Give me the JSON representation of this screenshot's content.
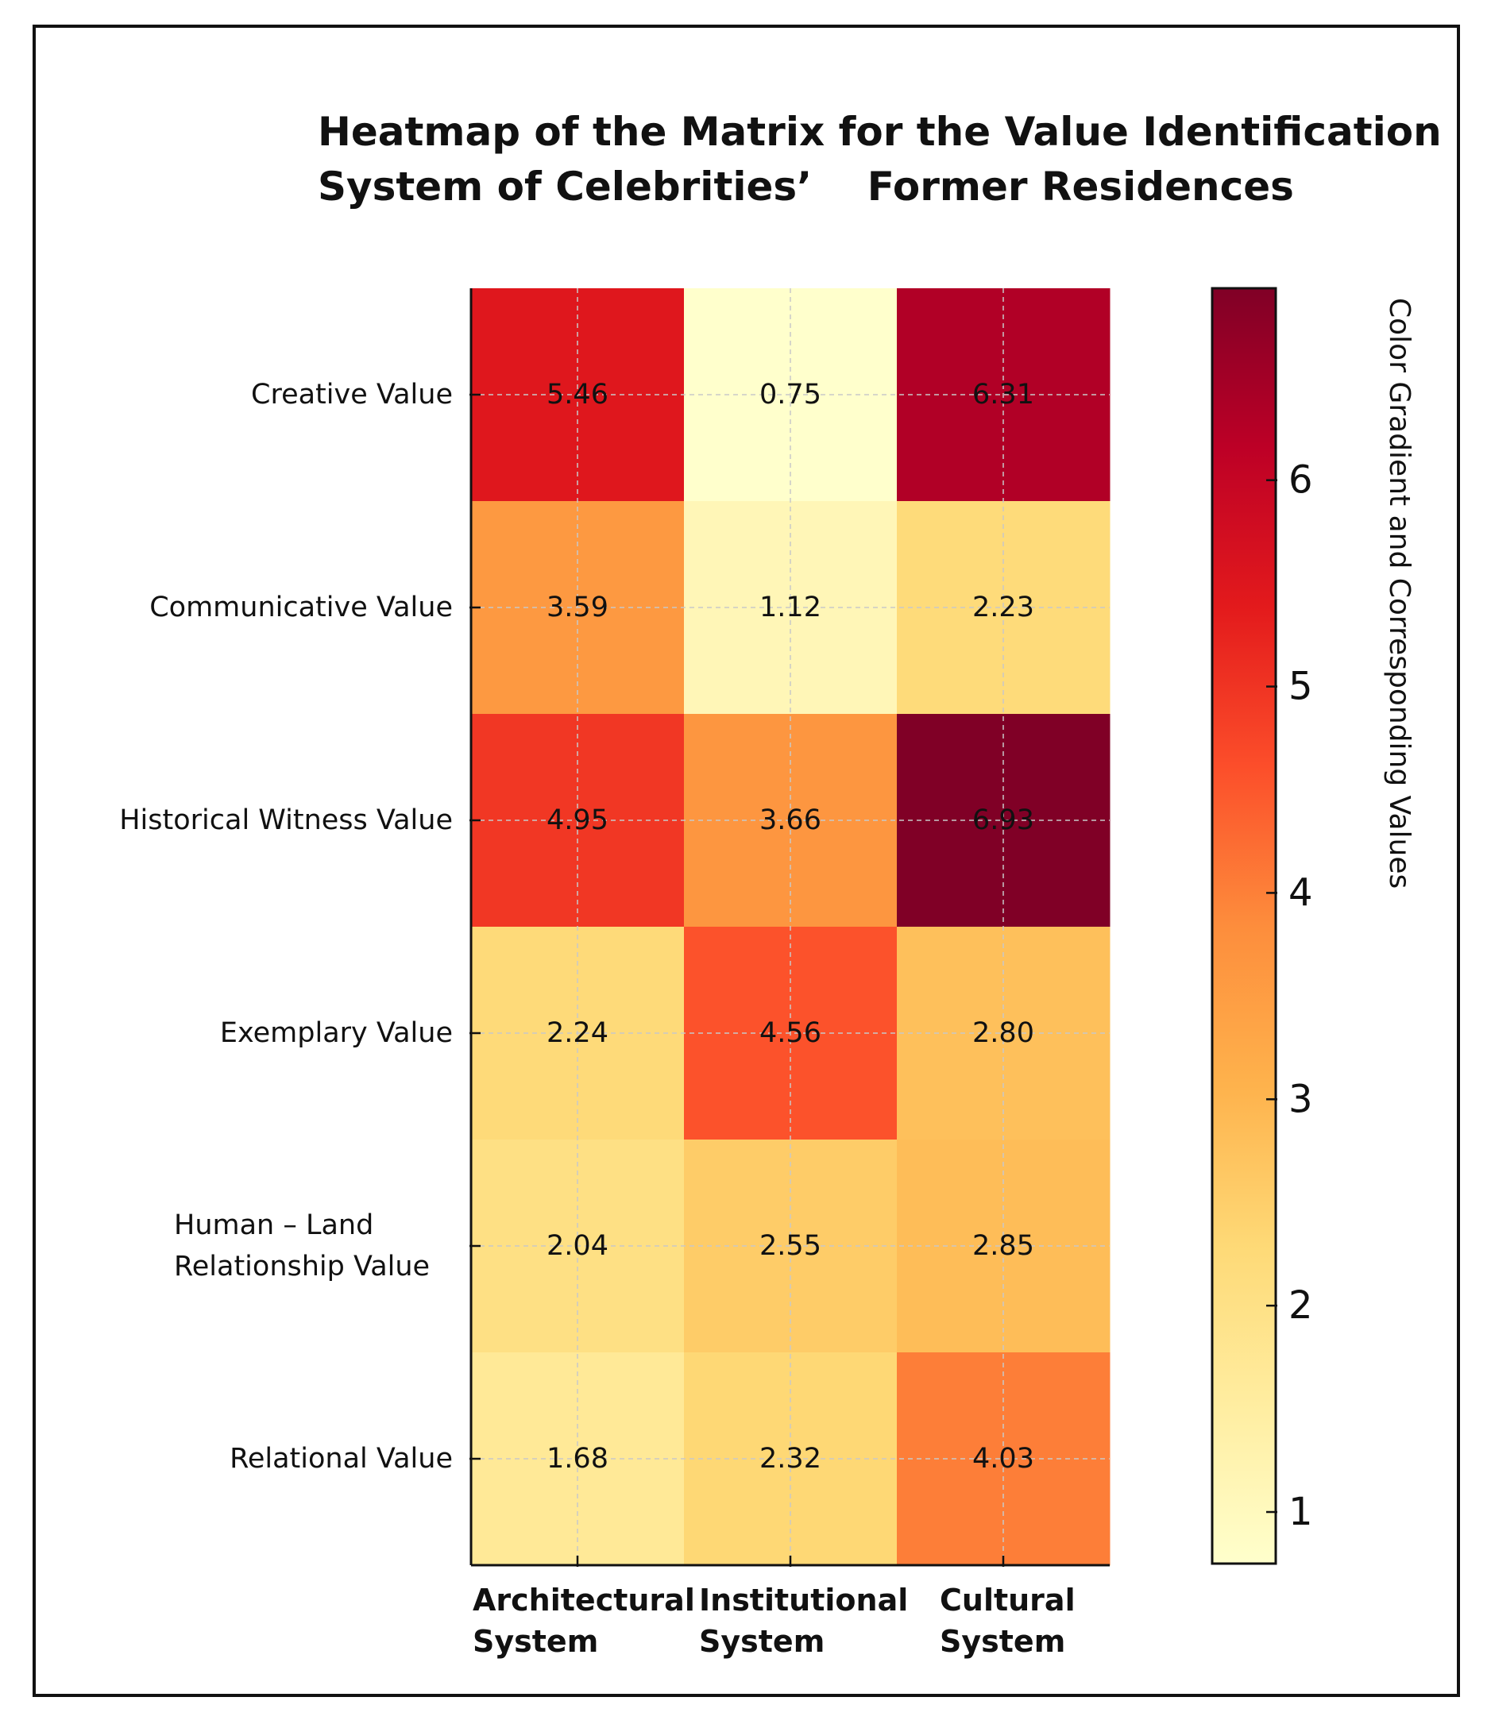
{
  "chart_data": {
    "type": "heatmap",
    "title": [
      "Heatmap of the Matrix for the Value Identification",
      "System of Celebrities’    Former Residences"
    ],
    "rows": [
      [
        "Creative Value"
      ],
      [
        "Communicative Value"
      ],
      [
        "Historical Witness Value"
      ],
      [
        "Exemplary Value"
      ],
      [
        "Human – Land",
        "Relationship Value"
      ],
      [
        "Relational Value"
      ]
    ],
    "columns": [
      [
        "Architectural",
        "System"
      ],
      [
        "Institutional",
        "System"
      ],
      [
        "Cultural",
        "System"
      ]
    ],
    "values": [
      [
        5.46,
        0.75,
        6.31
      ],
      [
        3.59,
        1.12,
        2.23
      ],
      [
        4.95,
        3.66,
        6.93
      ],
      [
        2.24,
        4.56,
        2.8
      ],
      [
        2.04,
        2.55,
        2.85
      ],
      [
        1.68,
        2.32,
        4.03
      ]
    ],
    "value_labels": [
      [
        "5.46",
        "0.75",
        "6.31"
      ],
      [
        "3.59",
        "1.12",
        "2.23"
      ],
      [
        "4.95",
        "3.66",
        "6.93"
      ],
      [
        "2.24",
        "4.56",
        "2.80"
      ],
      [
        "2.04",
        "2.55",
        "2.85"
      ],
      [
        "1.68",
        "2.32",
        "4.03"
      ]
    ],
    "colormap": "YlOrRd",
    "vmin": 0.75,
    "vmax": 6.93,
    "colorbar": {
      "label": "Color Gradient and Corresponding Values",
      "ticks": [
        "1",
        "2",
        "3",
        "4",
        "5",
        "6"
      ],
      "tick_values": [
        1,
        2,
        3,
        4,
        5,
        6
      ]
    },
    "grid": true
  },
  "colors": {
    "stops": [
      "#ffffcc",
      "#ffeda0",
      "#fed976",
      "#feb24c",
      "#fd8d3c",
      "#fc4e2a",
      "#e31a1c",
      "#bd0026",
      "#800026"
    ],
    "text": "#111111",
    "grid": "#c8c8c8"
  }
}
